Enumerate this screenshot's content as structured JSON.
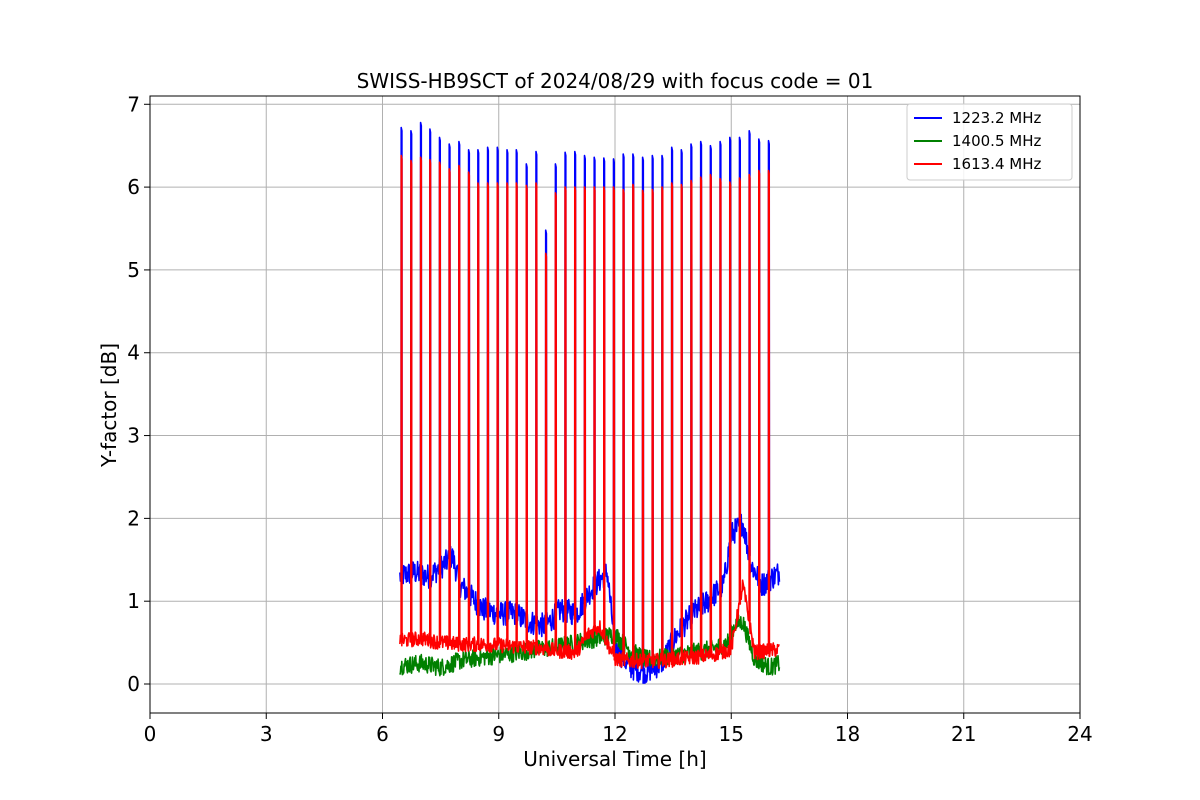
{
  "chart_data": {
    "type": "line",
    "title": "SWISS-HB9SCT of 2024/08/29 with focus code = 01",
    "xlabel": "Universal Time [h]",
    "ylabel": "Y-factor [dB]",
    "xlim": [
      0,
      24
    ],
    "ylim": [
      -0.35,
      7.1
    ],
    "xticks": [
      0,
      3,
      6,
      9,
      12,
      15,
      18,
      21,
      24
    ],
    "yticks": [
      0,
      1,
      2,
      3,
      4,
      5,
      6,
      7
    ],
    "grid": true,
    "legend_position": "top-right",
    "spike_times": [
      6.48,
      6.73,
      6.98,
      7.22,
      7.47,
      7.72,
      7.97,
      8.22,
      8.46,
      8.71,
      8.96,
      9.21,
      9.45,
      9.71,
      9.96,
      10.21,
      10.46,
      10.71,
      10.96,
      11.21,
      11.46,
      11.71,
      11.96,
      12.21,
      12.46,
      12.71,
      12.96,
      13.21,
      13.46,
      13.71,
      13.96,
      14.21,
      14.46,
      14.71,
      14.96,
      15.21,
      15.46,
      15.71,
      15.96
    ],
    "series": [
      {
        "name": "1223.2 MHz",
        "color": "#0000ff",
        "spike_peaks": [
          6.72,
          6.68,
          6.78,
          6.7,
          6.6,
          6.52,
          6.55,
          6.45,
          6.45,
          6.48,
          6.48,
          6.45,
          6.45,
          6.28,
          6.43,
          5.48,
          6.28,
          6.42,
          6.43,
          6.38,
          6.36,
          6.35,
          6.34,
          6.4,
          6.4,
          6.36,
          6.38,
          6.38,
          6.48,
          6.45,
          6.52,
          6.55,
          6.5,
          6.55,
          6.6,
          6.6,
          6.68,
          6.58,
          6.56
        ],
        "baseline_time": [
          6.45,
          6.8,
          7.2,
          7.6,
          7.8,
          8.0,
          8.3,
          8.6,
          9.0,
          9.4,
          9.8,
          10.2,
          10.6,
          11.0,
          11.4,
          11.8,
          12.0,
          12.4,
          12.8,
          13.2,
          13.6,
          14.0,
          14.4,
          14.8,
          15.0,
          15.3,
          15.5,
          15.8,
          16.25
        ],
        "baseline_value": [
          1.3,
          1.35,
          1.3,
          1.45,
          1.55,
          1.2,
          1.05,
          0.9,
          0.85,
          0.85,
          0.75,
          0.7,
          0.9,
          0.85,
          1.15,
          1.35,
          0.45,
          0.2,
          0.15,
          0.25,
          0.6,
          0.85,
          1.0,
          1.2,
          1.8,
          1.95,
          1.45,
          1.2,
          1.35
        ],
        "spread": 0.3
      },
      {
        "name": "1400.5 MHz",
        "color": "#008000",
        "spike_peaks": [],
        "baseline_time": [
          6.45,
          7.0,
          7.5,
          8.0,
          8.5,
          9.0,
          9.5,
          10.0,
          10.5,
          11.0,
          11.5,
          12.0,
          12.4,
          12.8,
          13.2,
          13.6,
          14.0,
          14.5,
          14.9,
          15.1,
          15.3,
          15.6,
          16.0,
          16.25
        ],
        "baseline_value": [
          0.22,
          0.25,
          0.2,
          0.28,
          0.32,
          0.35,
          0.38,
          0.42,
          0.45,
          0.5,
          0.55,
          0.6,
          0.4,
          0.3,
          0.32,
          0.35,
          0.38,
          0.42,
          0.5,
          0.72,
          0.75,
          0.3,
          0.2,
          0.25
        ],
        "spread": 0.22
      },
      {
        "name": "1613.4 MHz",
        "color": "#ff0000",
        "spike_peaks": [
          6.38,
          6.32,
          6.36,
          6.33,
          6.3,
          6.22,
          6.26,
          6.18,
          6.05,
          6.05,
          6.05,
          6.05,
          6.05,
          6.02,
          6.05,
          5.2,
          5.93,
          6.0,
          6.0,
          6.0,
          6.0,
          6.0,
          6.0,
          5.97,
          6.03,
          5.96,
          5.97,
          6.0,
          6.05,
          6.03,
          6.08,
          6.12,
          6.15,
          6.1,
          6.06,
          6.11,
          6.15,
          6.2,
          6.2
        ],
        "baseline_time": [
          6.45,
          7.0,
          7.5,
          8.0,
          8.5,
          9.0,
          9.5,
          10.0,
          10.5,
          11.0,
          11.3,
          11.6,
          12.0,
          12.4,
          12.8,
          13.2,
          13.6,
          14.0,
          14.5,
          15.0,
          15.3,
          15.6,
          16.25
        ],
        "baseline_value": [
          0.52,
          0.55,
          0.5,
          0.48,
          0.48,
          0.47,
          0.45,
          0.44,
          0.4,
          0.38,
          0.6,
          0.7,
          0.3,
          0.28,
          0.28,
          0.28,
          0.3,
          0.32,
          0.35,
          0.42,
          1.2,
          0.38,
          0.42
        ],
        "spread": 0.18
      }
    ]
  }
}
